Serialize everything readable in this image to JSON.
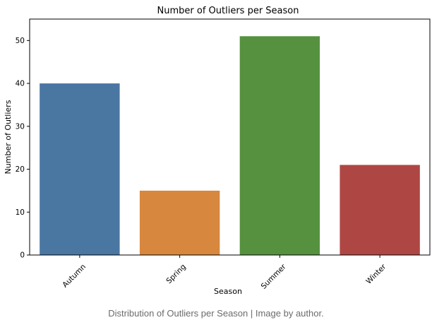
{
  "chart_data": {
    "type": "bar",
    "title": "Number of Outliers per Season",
    "xlabel": "Season",
    "ylabel": "Number of Outliers",
    "categories": [
      "Autumn",
      "Spring",
      "Summer",
      "Winter"
    ],
    "values": [
      40,
      15,
      51,
      21
    ],
    "colors": [
      "#4a76a2",
      "#d8873e",
      "#56913f",
      "#ae4644"
    ],
    "ylim": [
      0,
      55
    ],
    "yticks": [
      0,
      10,
      20,
      30,
      40,
      50
    ],
    "grid": false,
    "legend": "none"
  },
  "caption": "Distribution of Outliers per Season | Image by author."
}
